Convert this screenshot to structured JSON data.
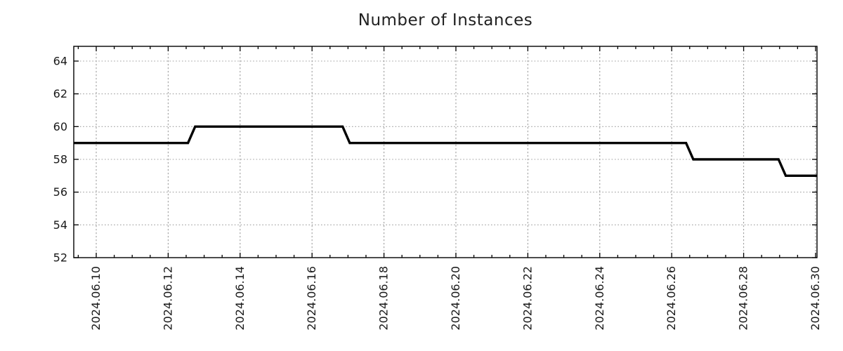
{
  "page": {
    "background_color": "#ffffff"
  },
  "chart_data": {
    "type": "line",
    "line_style": "step",
    "title": "Number of Instances",
    "legend": {
      "show": false
    },
    "grid": {
      "show": true,
      "color": "#a0a0a0",
      "style": "dotted"
    },
    "colors": {
      "background": "#ffffff",
      "border": "#000000",
      "text": "#1a1a1a",
      "title": "#212121",
      "line": "#000000"
    },
    "x_axis": {
      "unit": "date",
      "range_days": [
        9.375,
        30.04
      ],
      "major_tick_days": [
        10,
        12,
        14,
        16,
        18,
        20,
        22,
        24,
        26,
        28,
        30
      ],
      "tick_labels": [
        "2024.06.10",
        "2024.06.12",
        "2024.06.14",
        "2024.06.16",
        "2024.06.18",
        "2024.06.20",
        "2024.06.22",
        "2024.06.24",
        "2024.06.26",
        "2024.06.28",
        "2024.06.30"
      ],
      "minor_tick_interval_days": 0.5,
      "label_rotation_deg": -90
    },
    "y_axis": {
      "range": [
        52,
        64.9
      ],
      "tick_values": [
        52,
        54,
        56,
        58,
        60,
        62,
        64
      ],
      "tick_labels": [
        "52",
        "54",
        "56",
        "58",
        "60",
        "62",
        "64"
      ]
    },
    "series": [
      {
        "name": "Number of Instances",
        "color": "#000000",
        "line_width": 3.4,
        "points": [
          {
            "date": "2024-06-09 09:00",
            "day": 9.375,
            "value": 59
          },
          {
            "date": "2024-06-12 13:00",
            "day": 12.55,
            "value": 59
          },
          {
            "date": "2024-06-12 18:00",
            "day": 12.75,
            "value": 60
          },
          {
            "date": "2024-06-16 20:00",
            "day": 16.85,
            "value": 60
          },
          {
            "date": "2024-06-17 01:00",
            "day": 17.05,
            "value": 59
          },
          {
            "date": "2024-06-26 10:00",
            "day": 26.4,
            "value": 59
          },
          {
            "date": "2024-06-26 14:00",
            "day": 26.6,
            "value": 58
          },
          {
            "date": "2024-06-28 23:00",
            "day": 28.97,
            "value": 58
          },
          {
            "date": "2024-06-29 04:00",
            "day": 29.17,
            "value": 57
          },
          {
            "date": "2024-06-30 01:00",
            "day": 30.04,
            "value": 57
          }
        ]
      }
    ]
  }
}
